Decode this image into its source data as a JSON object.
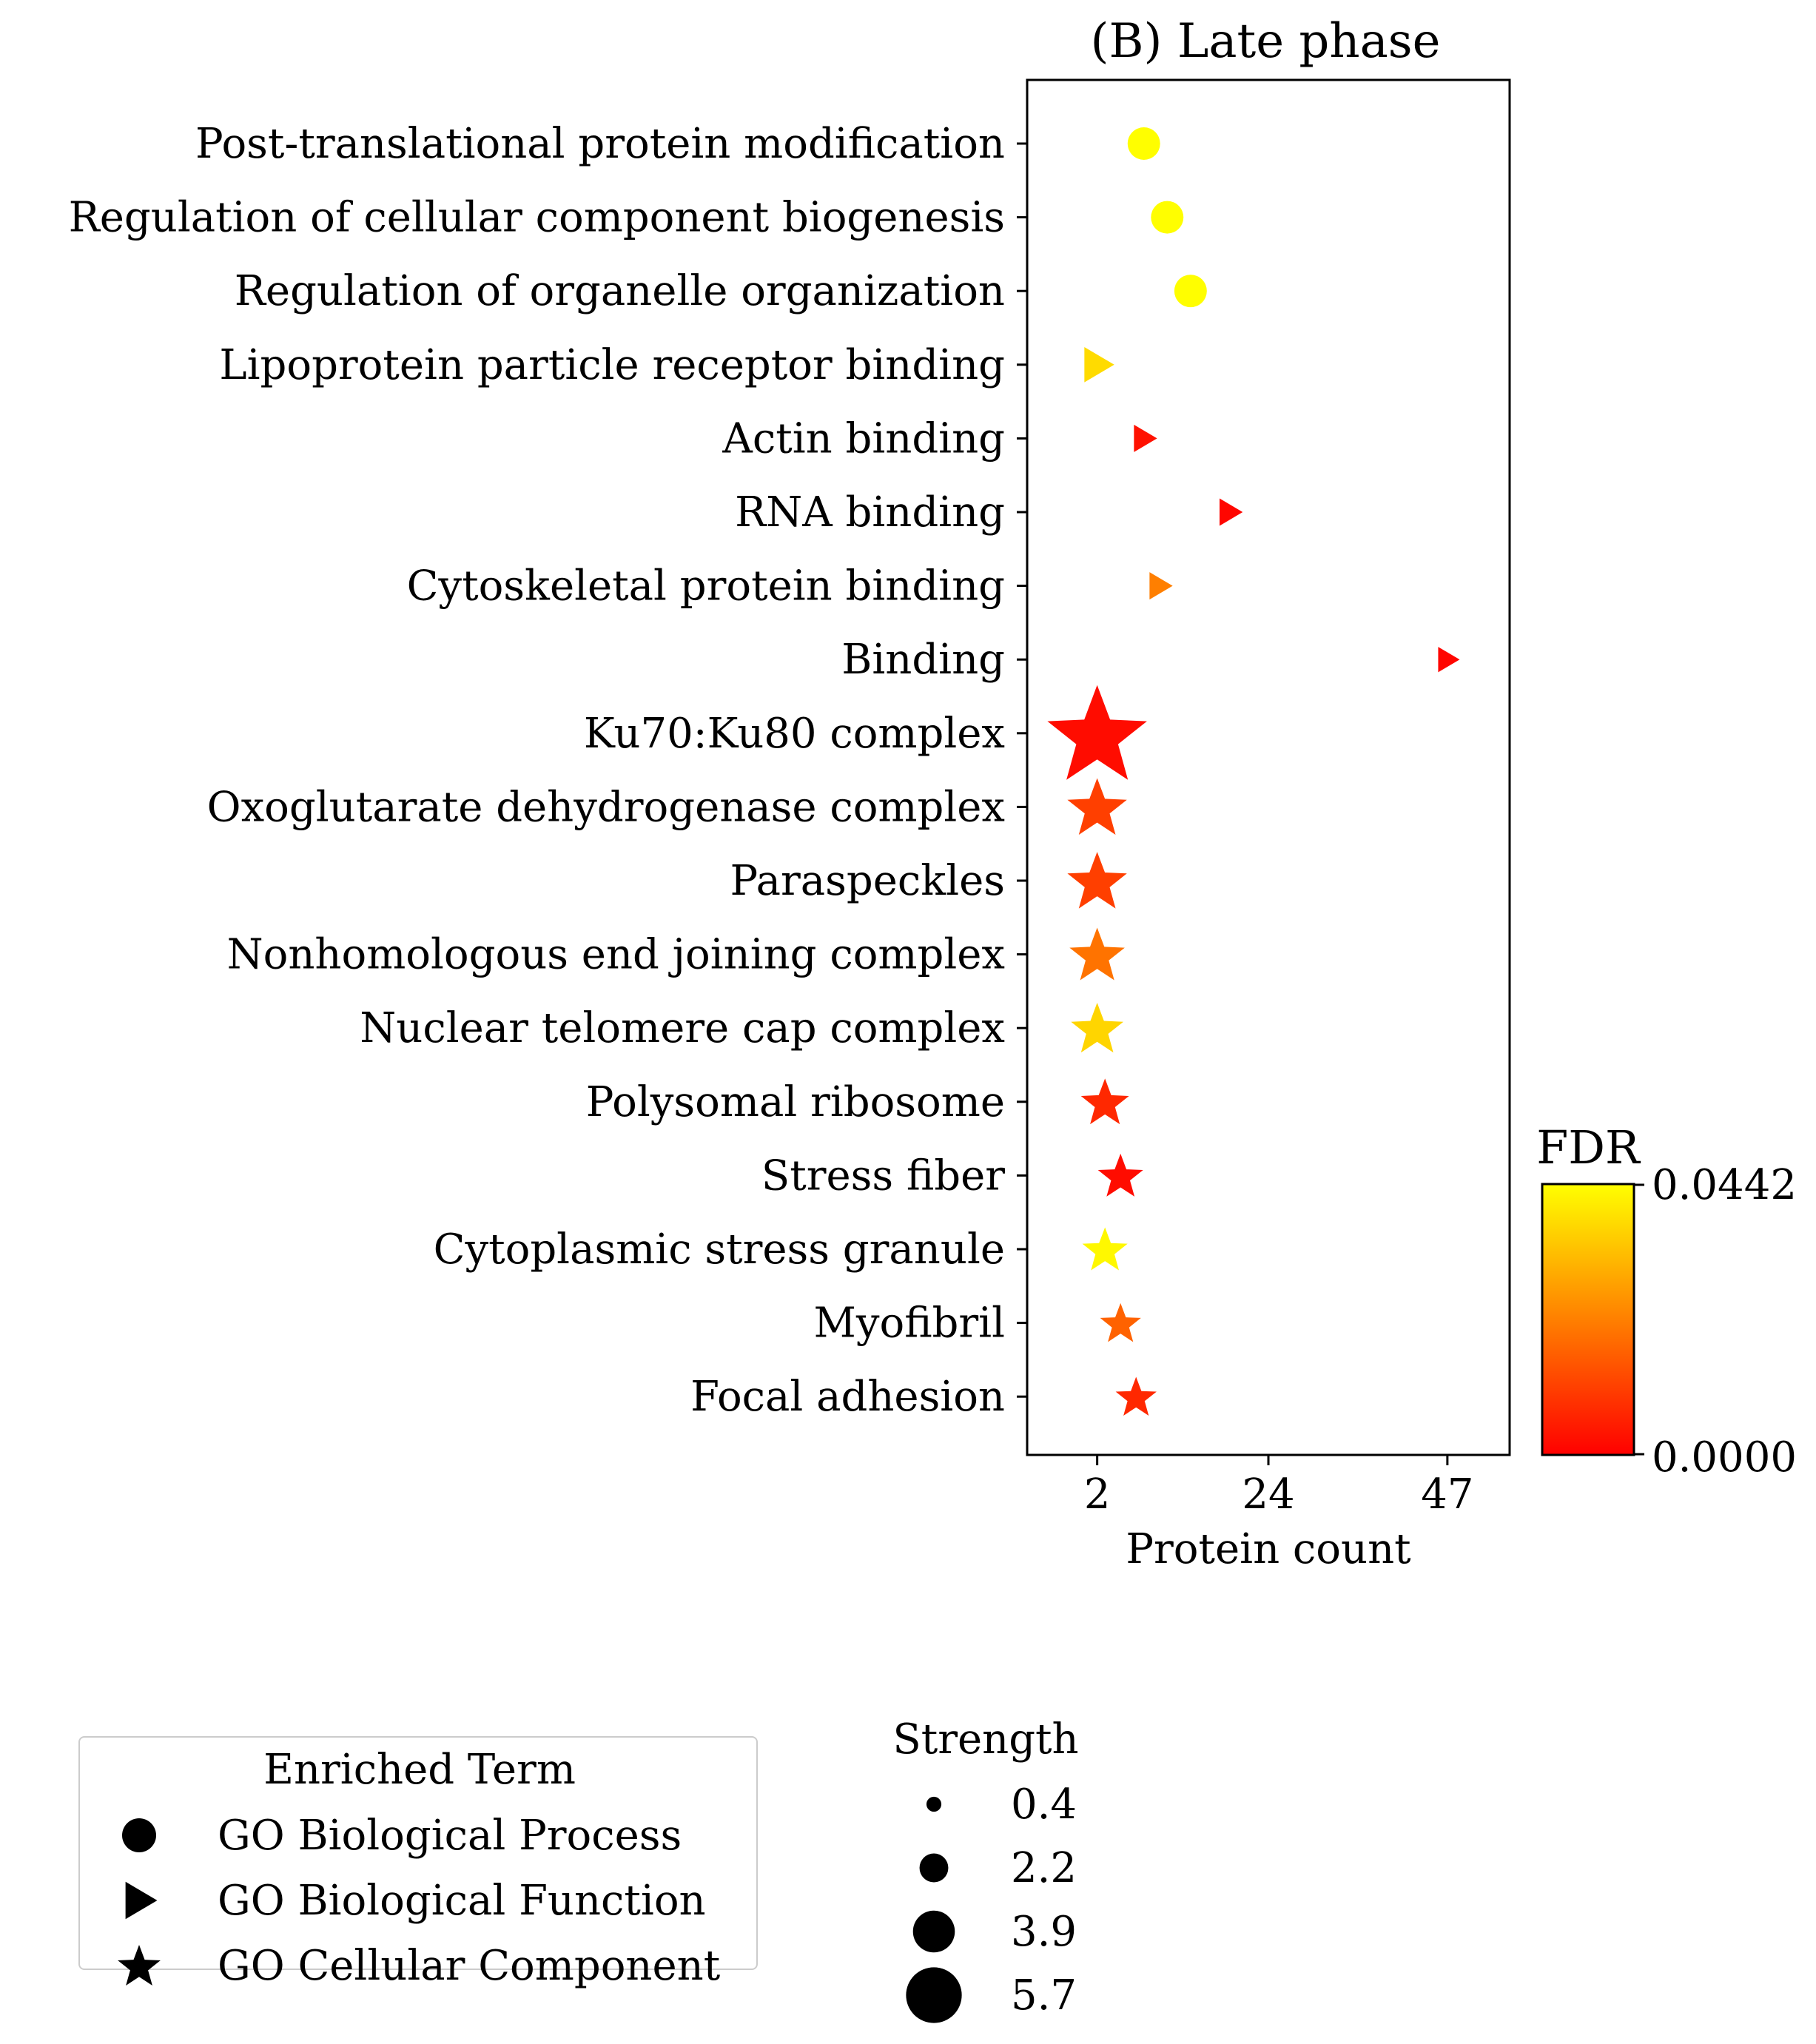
{
  "chart_data": {
    "type": "scatter",
    "title": "(B) Late phase",
    "xlabel": "Protein count",
    "ylabel": "",
    "x_ticks": [
      2,
      24,
      47
    ],
    "xlim": [
      -7,
      55
    ],
    "terms": [
      {
        "label": "Post-translational protein modification",
        "x": 8,
        "fdr": 0.044,
        "strength": 2.2,
        "category": "bp"
      },
      {
        "label": "Regulation of cellular component biogenesis",
        "x": 11,
        "fdr": 0.044,
        "strength": 2.2,
        "category": "bp"
      },
      {
        "label": "Regulation of organelle organization",
        "x": 14,
        "fdr": 0.044,
        "strength": 2.2,
        "category": "bp"
      },
      {
        "label": "Lipoprotein particle receptor binding",
        "x": 2,
        "fdr": 0.038,
        "strength": 2.3,
        "category": "bf"
      },
      {
        "label": "Actin binding",
        "x": 8,
        "fdr": 0.003,
        "strength": 1.5,
        "category": "bf"
      },
      {
        "label": "RNA binding",
        "x": 19,
        "fdr": 0.001,
        "strength": 1.5,
        "category": "bf"
      },
      {
        "label": "Cytoskeletal protein binding",
        "x": 10,
        "fdr": 0.022,
        "strength": 1.5,
        "category": "bf"
      },
      {
        "label": "Binding",
        "x": 47,
        "fdr": 0.001,
        "strength": 1.3,
        "category": "bf"
      },
      {
        "label": "Ku70:Ku80 complex",
        "x": 2,
        "fdr": 0.002,
        "strength": 5.7,
        "category": "cc"
      },
      {
        "label": "Oxoglutarate dehydrogenase complex",
        "x": 2,
        "fdr": 0.011,
        "strength": 2.9,
        "category": "cc"
      },
      {
        "label": "Paraspeckles",
        "x": 2,
        "fdr": 0.011,
        "strength": 2.9,
        "category": "cc"
      },
      {
        "label": "Nonhomologous end joining complex",
        "x": 2,
        "fdr": 0.02,
        "strength": 2.6,
        "category": "cc"
      },
      {
        "label": "Nuclear telomere cap complex",
        "x": 2,
        "fdr": 0.037,
        "strength": 2.4,
        "category": "cc"
      },
      {
        "label": "Polysomal ribosome",
        "x": 3,
        "fdr": 0.007,
        "strength": 2.1,
        "category": "cc"
      },
      {
        "label": "Stress fiber",
        "x": 5,
        "fdr": 0.002,
        "strength": 1.9,
        "category": "cc"
      },
      {
        "label": "Cytoplasmic stress granule",
        "x": 3,
        "fdr": 0.043,
        "strength": 1.9,
        "category": "cc"
      },
      {
        "label": "Myofibril",
        "x": 5,
        "fdr": 0.017,
        "strength": 1.6,
        "category": "cc"
      },
      {
        "label": "Focal adhesion",
        "x": 7,
        "fdr": 0.007,
        "strength": 1.6,
        "category": "cc"
      }
    ],
    "colorbar": {
      "title": "FDR",
      "min": 0.0,
      "max": 0.0442,
      "min_label": "0.0000",
      "max_label": "0.0442",
      "colormap": [
        "#ff0000",
        "#ffff00"
      ]
    },
    "legend": {
      "title": "Enriched Term",
      "placement": "bottom-left",
      "entries": [
        {
          "key": "bp",
          "label": "GO Biological Process",
          "icon": "circle-marker-icon"
        },
        {
          "key": "bf",
          "label": "GO Biological Function",
          "icon": "triangle-marker-icon"
        },
        {
          "key": "cc",
          "label": "GO Cellular Component",
          "icon": "star-marker-icon"
        }
      ]
    },
    "size_legend": {
      "title": "Strength",
      "entries": [
        {
          "value": 0.4,
          "label": "0.4"
        },
        {
          "value": 2.2,
          "label": "2.2"
        },
        {
          "value": 3.9,
          "label": "3.9"
        },
        {
          "value": 5.7,
          "label": "5.7"
        }
      ]
    },
    "grid": false
  }
}
